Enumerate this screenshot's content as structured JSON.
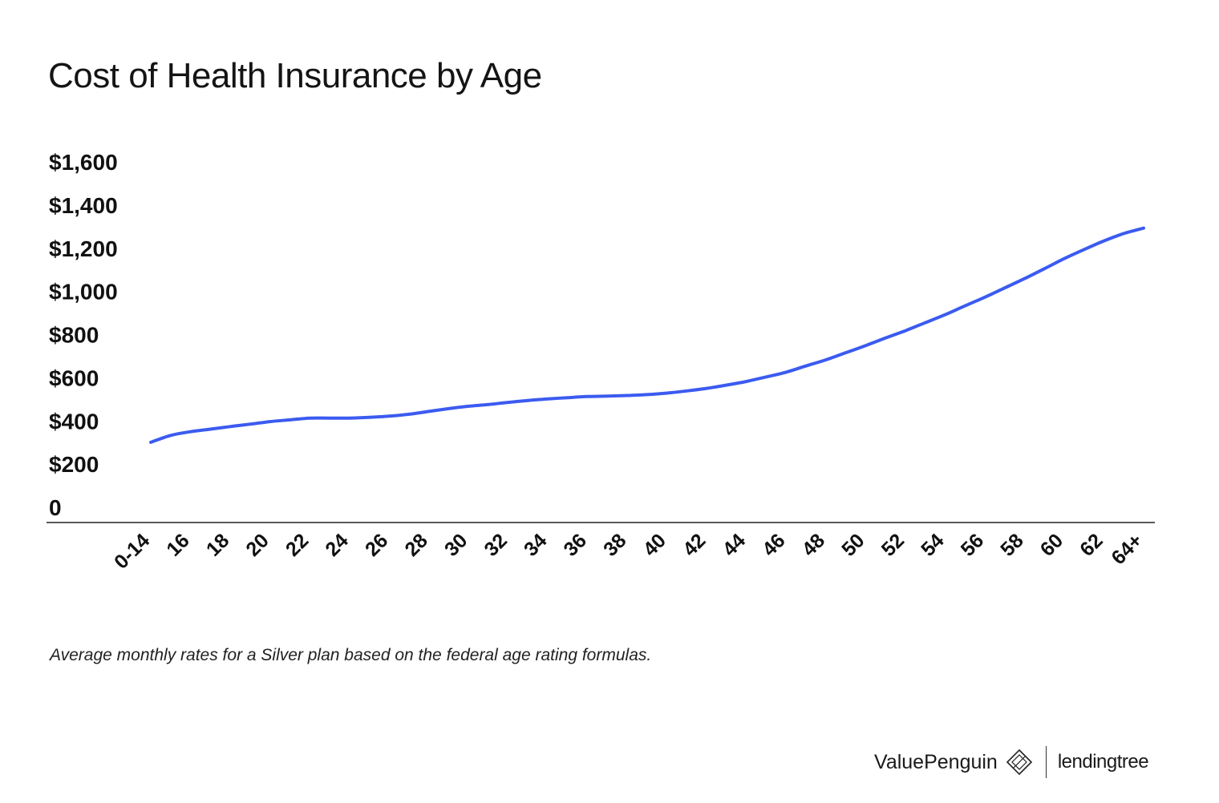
{
  "title": "Cost of Health Insurance by Age",
  "caption": "Average monthly rates for a Silver plan based on the federal age rating formulas.",
  "branding": {
    "valuepenguin": "ValuePenguin",
    "lendingtree": "lendingtree",
    "valuepenguin_icon": "valuepenguin-logo-icon"
  },
  "colors": {
    "line": "#3b5bf0",
    "axis": "#222222",
    "text": "#111111"
  },
  "chart_data": {
    "type": "line",
    "title": "Cost of Health Insurance by Age",
    "xlabel": "",
    "ylabel": "",
    "ylim": [
      0,
      1600
    ],
    "yticks": [
      0,
      200,
      400,
      600,
      800,
      1000,
      1200,
      1400,
      1600
    ],
    "ytick_labels": [
      "0",
      "$200",
      "$400",
      "$600",
      "$800",
      "$1,000",
      "$1,200",
      "$1,400",
      "$1,600"
    ],
    "x": [
      "0-14",
      "15",
      "16",
      "17",
      "18",
      "19",
      "20",
      "21",
      "22",
      "23",
      "24",
      "25",
      "26",
      "27",
      "28",
      "29",
      "30",
      "31",
      "32",
      "33",
      "34",
      "35",
      "36",
      "37",
      "38",
      "39",
      "40",
      "41",
      "42",
      "43",
      "44",
      "45",
      "46",
      "47",
      "48",
      "49",
      "50",
      "51",
      "52",
      "53",
      "54",
      "55",
      "56",
      "57",
      "58",
      "59",
      "60",
      "61",
      "62",
      "63",
      "64+"
    ],
    "xtick_labels": [
      "0-14",
      "16",
      "18",
      "20",
      "22",
      "24",
      "26",
      "28",
      "30",
      "32",
      "34",
      "36",
      "38",
      "40",
      "42",
      "44",
      "46",
      "48",
      "50",
      "52",
      "54",
      "56",
      "58",
      "60",
      "62",
      "64+"
    ],
    "series": [
      {
        "values": [
          301,
          333,
          350,
          362,
          374,
          385,
          397,
          405,
          413,
          413,
          413,
          417,
          422,
          431,
          444,
          457,
          468,
          476,
          486,
          495,
          502,
          508,
          513,
          515,
          518,
          522,
          529,
          539,
          551,
          566,
          583,
          604,
          626,
          655,
          683,
          716,
          749,
          784,
          818,
          855,
          892,
          933,
          973,
          1016,
          1059,
          1105,
          1152,
          1194,
          1234,
          1268,
          1293
        ]
      }
    ],
    "grid": false,
    "legend": "none"
  }
}
